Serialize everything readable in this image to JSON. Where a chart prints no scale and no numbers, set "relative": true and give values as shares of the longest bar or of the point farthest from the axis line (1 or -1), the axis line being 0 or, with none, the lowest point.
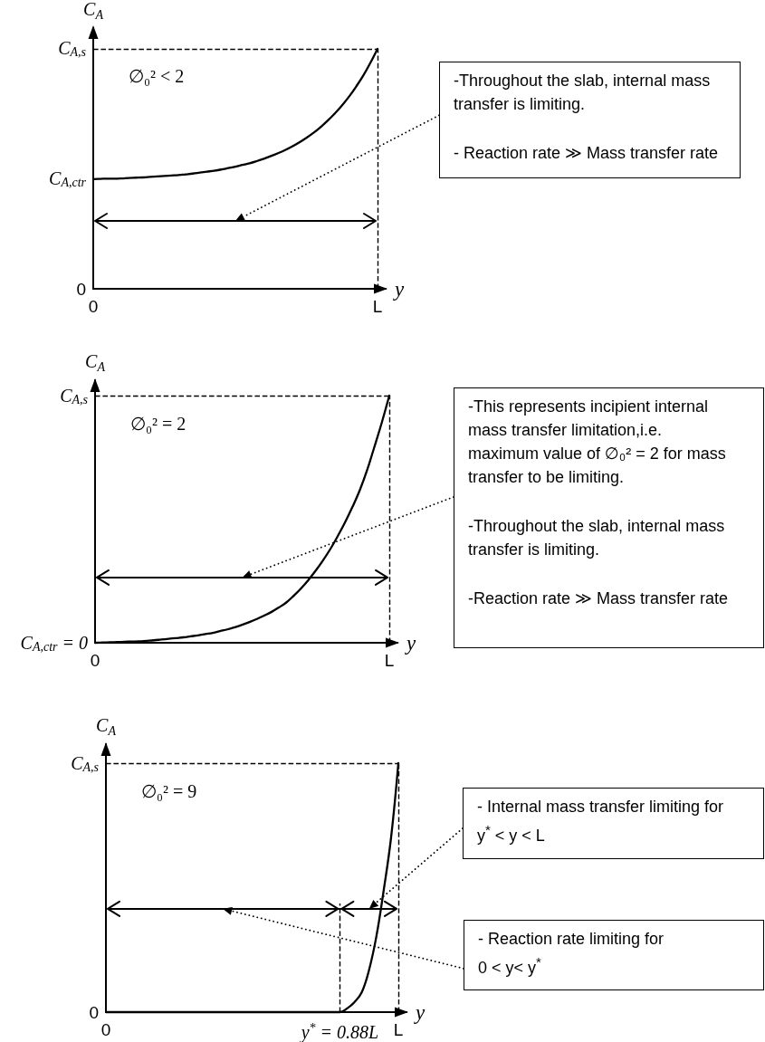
{
  "chart_data": [
    {
      "type": "line",
      "relative": true,
      "title": "∅₀² < 2",
      "xlabel": "y",
      "ylabel": "C$_{A}$",
      "color": "#000000",
      "marker": "none",
      "line_style": "solid",
      "categories": [
        "0",
        null,
        null,
        null,
        null,
        null,
        null,
        null,
        null,
        null,
        null,
        null,
        null,
        null,
        null,
        null,
        null,
        null,
        null,
        null,
        null,
        null,
        null,
        null,
        null,
        null,
        null,
        null,
        null,
        null,
        null,
        null,
        null,
        null,
        null,
        null,
        null,
        null,
        null,
        null,
        "L"
      ],
      "values": [
        0.457,
        0.458,
        0.459,
        0.459,
        0.46,
        0.462,
        0.463,
        0.464,
        0.466,
        0.468,
        0.47,
        0.472,
        0.474,
        0.477,
        0.48,
        0.484,
        0.488,
        0.492,
        0.497,
        0.503,
        0.509,
        0.516,
        0.523,
        0.532,
        0.542,
        0.553,
        0.565,
        0.578,
        0.593,
        0.61,
        0.629,
        0.65,
        0.674,
        0.701,
        0.731,
        0.764,
        0.801,
        0.843,
        0.889,
        0.942,
        1
      ],
      "ref_lines": [
        {
          "axis": "y",
          "value": 1,
          "label": "C$_{A,s}$",
          "line_style": "dashed"
        },
        {
          "axis": "x",
          "value": "L",
          "line_style": "dashed"
        },
        {
          "axis": "y",
          "value": 0.282
        }
      ],
      "annotations": [
        {
          "text": "C$_{A,ctr}$",
          "x": "0",
          "y": 0.457
        },
        "0",
        "-Throughout the slab, internal mass transfer is limiting.",
        "- Reaction rate ≫ Mass transfer rate"
      ]
    },
    {
      "type": "line",
      "relative": true,
      "title": "∅₀² = 2",
      "xlabel": "y",
      "ylabel": "C$_{A}$",
      "color": "#000000",
      "marker": "none",
      "line_style": "solid",
      "categories": [
        "0",
        null,
        null,
        null,
        null,
        null,
        null,
        null,
        null,
        null,
        null,
        null,
        null,
        null,
        null,
        null,
        null,
        null,
        null,
        null,
        null,
        null,
        null,
        null,
        null,
        null,
        null,
        null,
        null,
        null,
        null,
        null,
        null,
        null,
        null,
        null,
        null,
        null,
        null,
        null,
        "L"
      ],
      "values": [
        0,
        0.001,
        0.002,
        0.003,
        0.004,
        0.005,
        0.006,
        0.008,
        0.01,
        0.013,
        0.016,
        0.019,
        0.022,
        0.026,
        0.03,
        0.035,
        0.04,
        0.047,
        0.054,
        0.063,
        0.073,
        0.084,
        0.096,
        0.11,
        0.125,
        0.143,
        0.163,
        0.19,
        0.22,
        0.254,
        0.292,
        0.334,
        0.38,
        0.432,
        0.488,
        0.55,
        0.618,
        0.7,
        0.795,
        0.893,
        1
      ],
      "ref_lines": [
        {
          "axis": "y",
          "value": 1,
          "label": "C$_{A,s}$",
          "line_style": "dashed"
        },
        {
          "axis": "x",
          "value": "L",
          "line_style": "dashed"
        },
        {
          "axis": "y",
          "value": 0.264
        }
      ],
      "annotations": [
        {
          "text": "C$_{A,ctr}$ = 0",
          "x": "0",
          "y": 0
        },
        "-This represents incipient internal mass transfer limitation,i.e. maximum value of ∅₀² = 2 for mass transfer to be limiting.",
        "-Throughout the slab, internal mass transfer is limiting.",
        "-Reaction rate ≫ Mass transfer rate"
      ]
    },
    {
      "type": "line",
      "relative": true,
      "title": "∅₀² = 9",
      "xlabel": "y",
      "ylabel": "C$_{A}$",
      "color": "#000000",
      "marker": "none",
      "line_style": "solid",
      "categories": [
        "0",
        null,
        null,
        null,
        null,
        null,
        null,
        null,
        null,
        null,
        null,
        null,
        null,
        null,
        null,
        null,
        null,
        null,
        null,
        null,
        null,
        null,
        null,
        null,
        null,
        null,
        null,
        null,
        null,
        null,
        null,
        null,
        "y$^{*}$ = 0.88L",
        null,
        null,
        null,
        null,
        null,
        null,
        null,
        "L"
      ],
      "values": [
        0,
        0,
        0,
        0,
        0,
        0,
        0,
        0,
        0,
        0,
        0,
        0,
        0,
        0,
        0,
        0,
        0,
        0,
        0,
        0,
        0,
        0,
        0,
        0,
        0,
        0,
        0,
        0,
        0,
        0,
        0,
        0,
        0,
        0.015,
        0.04,
        0.08,
        0.17,
        0.305,
        0.49,
        0.7,
        1
      ],
      "ref_lines": [
        {
          "axis": "y",
          "value": 1,
          "label": "C$_{A,s}$",
          "line_style": "dashed"
        },
        {
          "axis": "x",
          "value": "L",
          "line_style": "dashed"
        },
        {
          "axis": "x",
          "value": "y$^{*}$ = 0.88L",
          "line_style": "dashed"
        },
        {
          "axis": "y",
          "value": 0.415
        }
      ],
      "annotations": [
        "0",
        "- Internal mass transfer limiting for\ny$^{*}$ < y < L",
        "- Reaction rate limiting for\n0 < y< y$^{*}$"
      ]
    }
  ]
}
